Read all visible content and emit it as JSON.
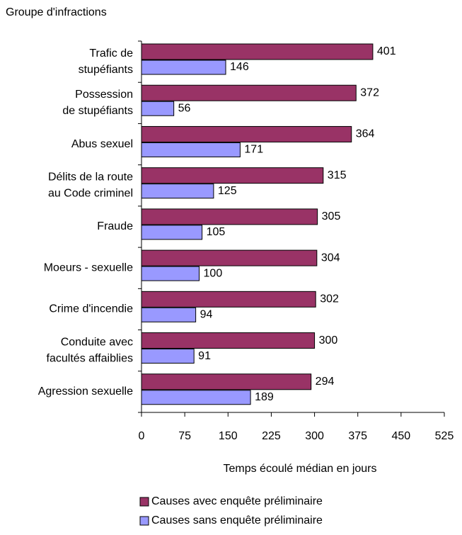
{
  "chart_data": {
    "type": "barh",
    "y_axis_label": "Groupe d'infractions",
    "x_axis_label": "Temps écoulé médian en jours",
    "categories": [
      [
        "Trafic de",
        "stupéfiants"
      ],
      [
        "Possession",
        "de stupéfiants"
      ],
      [
        "Abus sexuel"
      ],
      [
        "Délits de la route",
        "au Code criminel"
      ],
      [
        "Fraude"
      ],
      [
        "Moeurs - sexuelle"
      ],
      [
        "Crime d'incendie"
      ],
      [
        "Conduite avec",
        "facultés affaiblies"
      ],
      [
        "Agression sexuelle"
      ]
    ],
    "series": [
      {
        "name": "Causes avec enquête préliminaire",
        "color": "#993366",
        "values": [
          401,
          372,
          364,
          315,
          305,
          304,
          302,
          300,
          294
        ]
      },
      {
        "name": "Causes sans enquête préliminaire",
        "color": "#9999ff",
        "values": [
          146,
          56,
          171,
          125,
          105,
          100,
          94,
          91,
          189
        ]
      }
    ],
    "xlim": [
      0,
      525
    ],
    "xticks": [
      0,
      75,
      150,
      225,
      300,
      375,
      450,
      525
    ],
    "grid": false,
    "legend": "bottom"
  }
}
